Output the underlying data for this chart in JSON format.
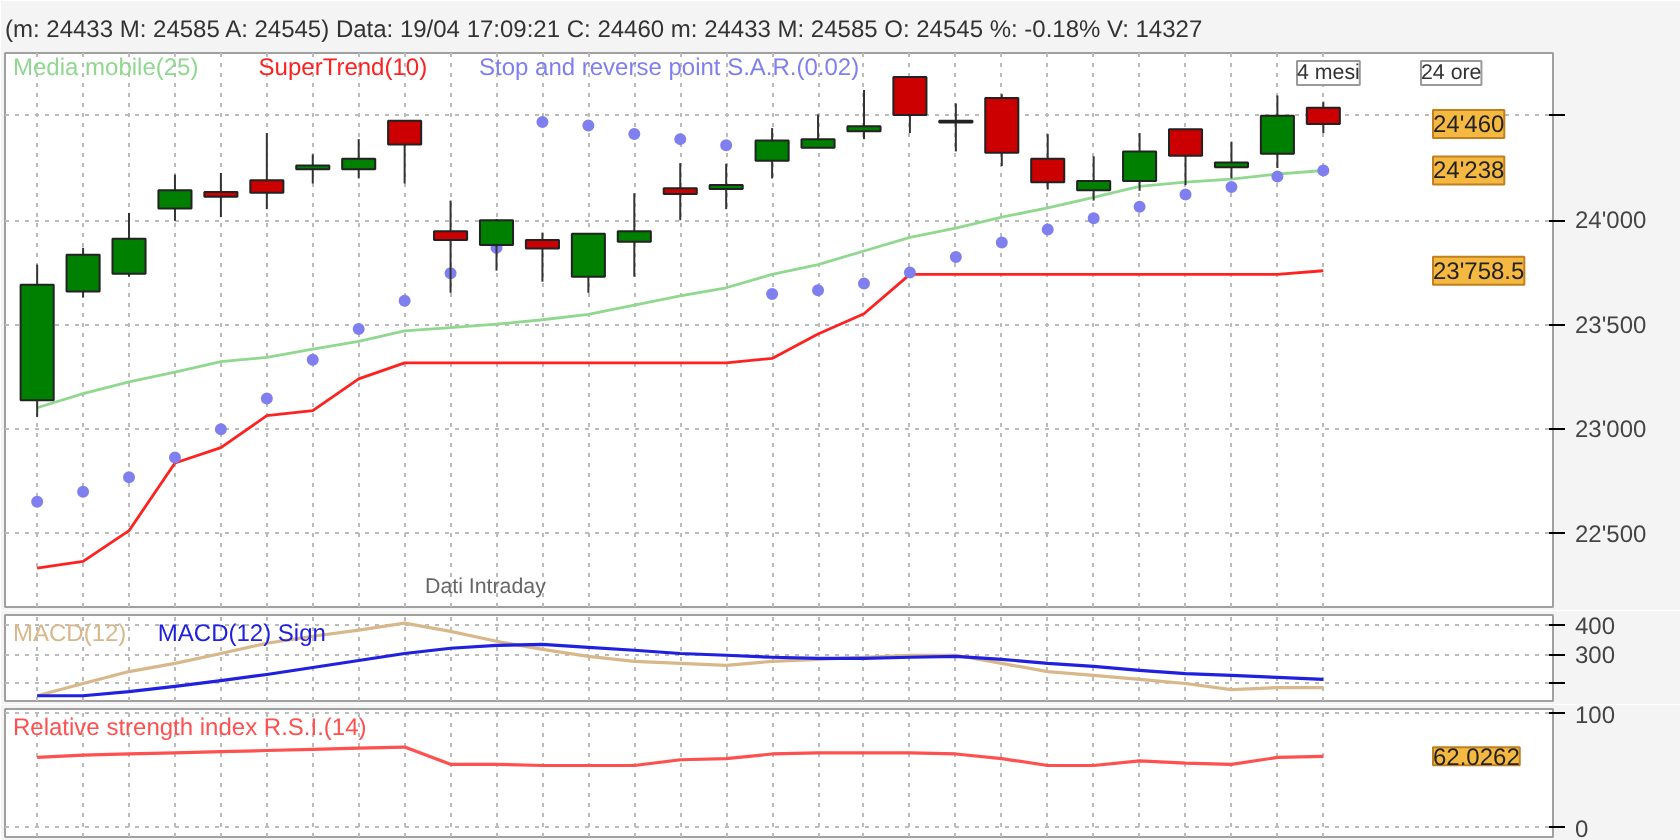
{
  "chart_data": [
    {
      "type": "candlestick",
      "title": "(m: 24433 M: 24585 A: 24545) Data: 19/04 17:09:21  C: 24460  m: 24433  M: 24585  O: 24545  %: -0.18%  V: 14327",
      "categories": [
        null,
        null,
        null,
        null,
        null,
        null,
        null,
        null,
        null,
        null,
        null,
        null,
        null,
        null,
        null,
        null,
        null,
        null,
        null,
        null,
        null,
        null,
        null,
        null,
        null,
        null,
        null,
        null,
        null
      ],
      "ohlc": [
        [
          23139,
          23788,
          23059,
          23691
        ],
        [
          23659,
          23868,
          23630,
          23835
        ],
        [
          23744,
          24035,
          23730,
          23912
        ],
        [
          24056,
          24218,
          23997,
          24144
        ],
        [
          24135,
          24226,
          24015,
          24112
        ],
        [
          24191,
          24417,
          24053,
          24132
        ],
        [
          24244,
          24315,
          24176,
          24262
        ],
        [
          24244,
          24388,
          24200,
          24294
        ],
        [
          24476,
          24476,
          24176,
          24362
        ],
        [
          23947,
          24094,
          23653,
          23906
        ],
        [
          23882,
          24006,
          23759,
          24000
        ],
        [
          23906,
          23941,
          23706,
          23865
        ],
        [
          23730,
          23935,
          23653,
          23935
        ],
        [
          23897,
          24129,
          23730,
          23947
        ],
        [
          24153,
          24273,
          24000,
          24126
        ],
        [
          24150,
          24270,
          24053,
          24168
        ],
        [
          24285,
          24441,
          24200,
          24382
        ],
        [
          24347,
          24506,
          24347,
          24388
        ],
        [
          24426,
          24623,
          24388,
          24450
        ],
        [
          24685,
          24685,
          24417,
          24503
        ],
        [
          24476,
          24559,
          24329,
          24467
        ],
        [
          24585,
          24603,
          24259,
          24323
        ],
        [
          24294,
          24412,
          24147,
          24182
        ],
        [
          24144,
          24306,
          24094,
          24188
        ],
        [
          24188,
          24417,
          24141,
          24329
        ],
        [
          24435,
          24435,
          24168,
          24309
        ],
        [
          24253,
          24376,
          24200,
          24276
        ],
        [
          24318,
          24597,
          24250,
          24500
        ],
        [
          24538,
          24567,
          24417,
          24460
        ]
      ],
      "colors": [
        "#008000",
        "#008000",
        "#008000",
        "#008000",
        "#cc0000",
        "#cc0000",
        "#008000",
        "#008000",
        "#cc0000",
        "#cc0000",
        "#008000",
        "#cc0000",
        "#008000",
        "#008000",
        "#cc0000",
        "#008000",
        "#008000",
        "#008000",
        "#008000",
        "#cc0000",
        "#cc0000",
        "#cc0000",
        "#cc0000",
        "#008000",
        "#008000",
        "#cc0000",
        "#008000",
        "#008000",
        "#cc0000"
      ],
      "series": [
        {
          "name": "Media mobile(25)",
          "type": "line",
          "color": "#90d890",
          "values": [
            23103,
            23171,
            23227,
            23274,
            23324,
            23344,
            23383,
            23421,
            23471,
            23486,
            23503,
            23524,
            23550,
            23594,
            23638,
            23677,
            23741,
            23788,
            23853,
            23918,
            23962,
            24015,
            24059,
            24109,
            24162,
            24182,
            24197,
            24221,
            24238
          ]
        },
        {
          "name": "SuperTrend(10)",
          "type": "line",
          "color": "#ff2020",
          "values": [
            22336,
            22368,
            22515,
            22839,
            22912,
            23065,
            23089,
            23241,
            23318,
            23318,
            23318,
            23318,
            23318,
            23318,
            23318,
            23318,
            23339,
            23456,
            23553,
            23741,
            23741,
            23741,
            23741,
            23741,
            23741,
            23741,
            23741,
            23741,
            23758.5
          ]
        },
        {
          "name": "Stop and reverse point S.A.R.(0.02)",
          "type": "scatter",
          "marker": "circle",
          "color": "#7f7fef",
          "values": [
            22654,
            22701,
            22771,
            22865,
            23000,
            23147,
            23333,
            23480,
            23615,
            23747,
            23868,
            24470,
            24453,
            24412,
            24388,
            24359,
            23647,
            23665,
            23697,
            23750,
            23824,
            23894,
            23956,
            24009,
            24065,
            24123,
            24159,
            24209,
            24238
          ]
        }
      ],
      "ylim": [
        22150,
        24800
      ],
      "yticks": [
        {
          "value": 22500,
          "label": "22'500"
        },
        {
          "value": 23000,
          "label": "23'000"
        },
        {
          "value": 23500,
          "label": "23'500"
        },
        {
          "value": 24000,
          "label": "24'000"
        },
        {
          "value": 24500,
          "label": null
        }
      ],
      "grid": true,
      "legend": "top left",
      "tick_labels": "y",
      "annotations": [
        "Dati Intraday",
        "4 mesi",
        "24 ore",
        "24'460",
        "24'238",
        "23'758.5"
      ]
    },
    {
      "type": "line",
      "categories": [
        null,
        null,
        null,
        null,
        null,
        null,
        null,
        null,
        null,
        null,
        null,
        null,
        null,
        null,
        null,
        null,
        null,
        null,
        null,
        null,
        null,
        null,
        null,
        null,
        null,
        null,
        null,
        null,
        null
      ],
      "series": [
        {
          "name": "MACD(12)",
          "color": "#d8b88a",
          "values": [
            158,
            200,
            241,
            269,
            303,
            338,
            362,
            383,
            407,
            379,
            345,
            317,
            293,
            276,
            269,
            262,
            276,
            283,
            290,
            297,
            297,
            269,
            241,
            228,
            214,
            200,
            179,
            186,
            186
          ]
        },
        {
          "name": "MACD(12) Sign",
          "color": "#2020e0",
          "values": [
            158,
            158,
            172,
            190,
            210,
            231,
            255,
            279,
            303,
            321,
            331,
            334,
            324,
            314,
            303,
            297,
            290,
            286,
            286,
            290,
            293,
            283,
            269,
            259,
            245,
            234,
            228,
            221,
            214
          ]
        }
      ],
      "ylim": [
        140,
        435
      ],
      "yticks": [
        {
          "value": 200,
          "label": null
        },
        300,
        400
      ],
      "grid": true,
      "legend": "top left",
      "tick_labels": "y"
    },
    {
      "type": "line",
      "categories": [
        null,
        null,
        null,
        null,
        null,
        null,
        null,
        null,
        null,
        null,
        null,
        null,
        null,
        null,
        null,
        null,
        null,
        null,
        null,
        null,
        null,
        null,
        null,
        null,
        null,
        null,
        null,
        null,
        null
      ],
      "series": [
        {
          "name": "Relative strength index R.S.I.(14)",
          "color": "#ff5050",
          "values": [
            61,
            63,
            64,
            65,
            66,
            67,
            68,
            69,
            70,
            55,
            55,
            54,
            54,
            54,
            59,
            60,
            64,
            65,
            65,
            65,
            64,
            60,
            54,
            54,
            58,
            56,
            55,
            61,
            62
          ]
        }
      ],
      "ylim": [
        -8,
        103
      ],
      "yticks": [
        0,
        100
      ],
      "grid": true,
      "legend": "top left",
      "tick_labels": "y",
      "annotations": [
        "62.0262"
      ]
    }
  ]
}
